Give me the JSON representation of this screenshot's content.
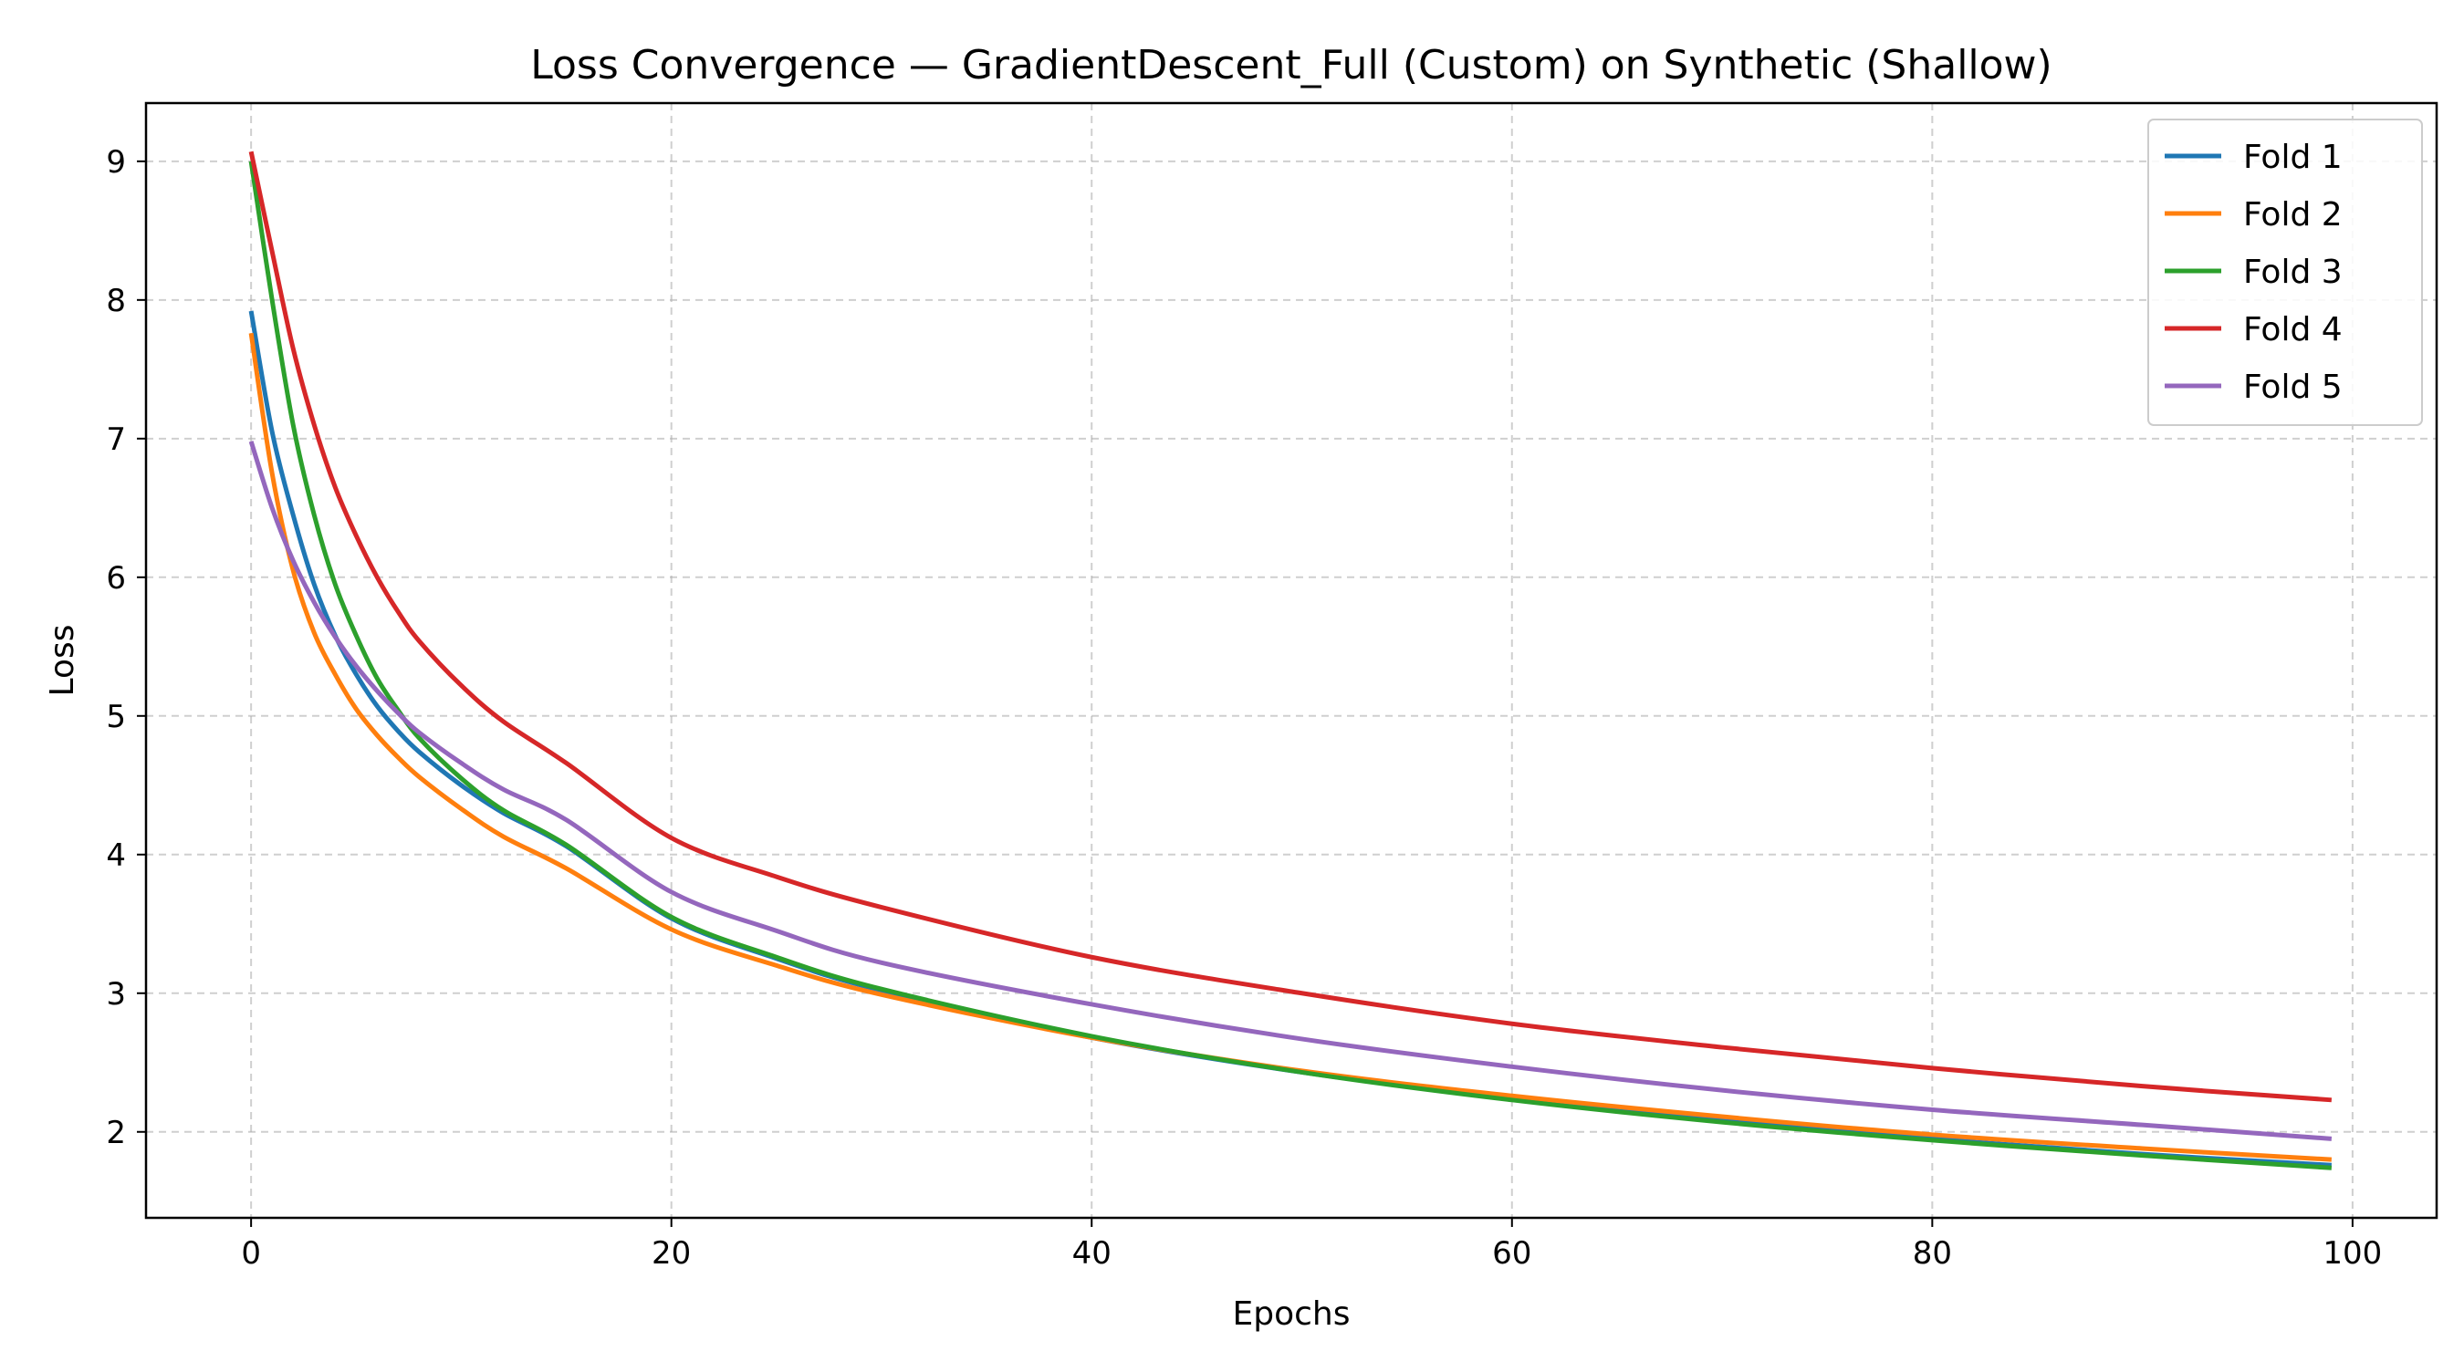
{
  "chart_data": {
    "type": "line",
    "title": "Loss Convergence — GradientDescent_Full (Custom) on Synthetic (Shallow)",
    "xlabel": "Epochs",
    "ylabel": "Loss",
    "xlim": [
      -5,
      104
    ],
    "ylim": [
      1.38,
      9.42
    ],
    "xticks": [
      0,
      20,
      40,
      60,
      80,
      100
    ],
    "yticks": [
      2,
      3,
      4,
      5,
      6,
      7,
      8,
      9
    ],
    "grid": true,
    "legend_position": "top-right",
    "x": [
      0,
      1,
      2,
      3,
      4,
      5,
      6,
      7,
      8,
      10,
      12,
      15,
      20,
      25,
      30,
      40,
      50,
      60,
      70,
      80,
      90,
      99
    ],
    "series": [
      {
        "name": "Fold 1",
        "color": "#1f77b4",
        "values": [
          7.92,
          7.05,
          6.45,
          5.95,
          5.58,
          5.3,
          5.07,
          4.89,
          4.74,
          4.5,
          4.3,
          4.06,
          3.54,
          3.25,
          3.02,
          2.68,
          2.43,
          2.24,
          2.08,
          1.95,
          1.84,
          1.76
        ]
      },
      {
        "name": "Fold 2",
        "color": "#ff7f0e",
        "values": [
          7.76,
          6.75,
          6.05,
          5.6,
          5.3,
          5.05,
          4.86,
          4.7,
          4.56,
          4.33,
          4.13,
          3.9,
          3.46,
          3.2,
          2.99,
          2.68,
          2.44,
          2.26,
          2.11,
          1.98,
          1.88,
          1.8
        ]
      },
      {
        "name": "Fold 3",
        "color": "#2ca02c",
        "values": [
          9.0,
          8.0,
          7.1,
          6.45,
          5.95,
          5.58,
          5.27,
          5.04,
          4.84,
          4.55,
          4.32,
          4.07,
          3.55,
          3.26,
          3.03,
          2.69,
          2.43,
          2.23,
          2.07,
          1.94,
          1.83,
          1.74
        ]
      },
      {
        "name": "Fold 4",
        "color": "#d62728",
        "values": [
          9.07,
          8.35,
          7.65,
          7.1,
          6.65,
          6.3,
          6.0,
          5.75,
          5.54,
          5.22,
          4.96,
          4.66,
          4.12,
          3.84,
          3.62,
          3.26,
          3.0,
          2.78,
          2.61,
          2.46,
          2.33,
          2.23
        ]
      },
      {
        "name": "Fold 5",
        "color": "#9467bd",
        "values": [
          6.98,
          6.5,
          6.12,
          5.82,
          5.57,
          5.36,
          5.18,
          5.02,
          4.88,
          4.66,
          4.47,
          4.25,
          3.73,
          3.45,
          3.22,
          2.92,
          2.67,
          2.47,
          2.3,
          2.16,
          2.05,
          1.95
        ]
      }
    ]
  }
}
